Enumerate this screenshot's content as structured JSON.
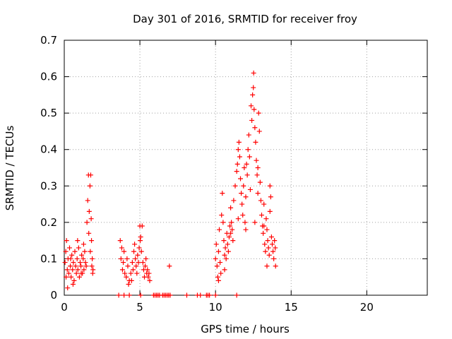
{
  "chart_data": {
    "type": "scatter",
    "title": "Day 301 of 2016, SRMTID for receiver froy",
    "xlabel": "GPS time / hours",
    "ylabel": "SRMTID / TECUs",
    "xlim": [
      0,
      24
    ],
    "ylim": [
      0,
      0.7
    ],
    "xticks": [
      0,
      5,
      10,
      15,
      20
    ],
    "yticks": [
      0,
      0.1,
      0.2,
      0.3,
      0.4,
      0.5,
      0.6,
      0.7
    ],
    "xtick_labels": [
      "0",
      "5",
      "10",
      "15",
      "20"
    ],
    "ytick_labels": [
      "0",
      "0.1",
      "0.2",
      "0.3",
      "0.4",
      "0.5",
      "0.6",
      "0.7"
    ],
    "grid": true,
    "marker": "+",
    "color": "#ff0000",
    "series": [
      {
        "points": [
          [
            0.05,
            0.09
          ],
          [
            0.1,
            0.12
          ],
          [
            0.12,
            0.05
          ],
          [
            0.15,
            0.15
          ],
          [
            0.2,
            0.07
          ],
          [
            0.25,
            0.1
          ],
          [
            0.3,
            0.06
          ],
          [
            0.35,
            0.13
          ],
          [
            0.4,
            0.08
          ],
          [
            0.45,
            0.05
          ],
          [
            0.5,
            0.11
          ],
          [
            0.55,
            0.07
          ],
          [
            0.6,
            0.09
          ],
          [
            0.65,
            0.04
          ],
          [
            0.7,
            0.12
          ],
          [
            0.75,
            0.08
          ],
          [
            0.8,
            0.06
          ],
          [
            0.85,
            0.1
          ],
          [
            0.9,
            0.07
          ],
          [
            0.95,
            0.13
          ],
          [
            1.0,
            0.05
          ],
          [
            1.05,
            0.09
          ],
          [
            1.1,
            0.08
          ],
          [
            1.15,
            0.11
          ],
          [
            1.2,
            0.06
          ],
          [
            1.25,
            0.1
          ],
          [
            1.3,
            0.07
          ],
          [
            1.35,
            0.12
          ],
          [
            1.4,
            0.09
          ],
          [
            1.45,
            0.08
          ],
          [
            1.5,
            0.2
          ],
          [
            1.55,
            0.26
          ],
          [
            1.6,
            0.33
          ],
          [
            1.62,
            0.17
          ],
          [
            1.65,
            0.23
          ],
          [
            1.7,
            0.3
          ],
          [
            1.72,
            0.12
          ],
          [
            1.75,
            0.33
          ],
          [
            1.78,
            0.21
          ],
          [
            1.8,
            0.15
          ],
          [
            1.82,
            0.08
          ],
          [
            1.85,
            0.1
          ],
          [
            1.88,
            0.06
          ],
          [
            1.9,
            0.07
          ],
          [
            0.22,
            0.02
          ],
          [
            0.58,
            0.03
          ],
          [
            0.88,
            0.15
          ],
          [
            1.28,
            0.14
          ],
          [
            0.42,
            0.1
          ],
          [
            1.12,
            0.06
          ],
          [
            3.7,
            0.15
          ],
          [
            3.75,
            0.1
          ],
          [
            3.8,
            0.13
          ],
          [
            3.85,
            0.07
          ],
          [
            3.9,
            0.09
          ],
          [
            4.0,
            0.06
          ],
          [
            4.1,
            0.05
          ],
          [
            4.2,
            0.08
          ],
          [
            4.3,
            0.04
          ],
          [
            4.4,
            0.06
          ],
          [
            4.5,
            0.09
          ],
          [
            4.55,
            0.07
          ],
          [
            4.6,
            0.12
          ],
          [
            4.65,
            0.14
          ],
          [
            4.7,
            0.1
          ],
          [
            4.75,
            0.08
          ],
          [
            4.8,
            0.06
          ],
          [
            4.85,
            0.11
          ],
          [
            4.9,
            0.09
          ],
          [
            4.95,
            0.13
          ],
          [
            5.0,
            0.19
          ],
          [
            5.02,
            0.15
          ],
          [
            5.05,
            0.16
          ],
          [
            5.1,
            0.12
          ],
          [
            5.15,
            0.19
          ],
          [
            5.2,
            0.09
          ],
          [
            5.25,
            0.07
          ],
          [
            5.3,
            0.05
          ],
          [
            5.35,
            0.08
          ],
          [
            5.4,
            0.1
          ],
          [
            5.45,
            0.06
          ],
          [
            5.5,
            0.07
          ],
          [
            5.55,
            0.05
          ],
          [
            5.6,
            0.06
          ],
          [
            5.65,
            0.04
          ],
          [
            4.25,
            0.03
          ],
          [
            4.45,
            0.04
          ],
          [
            4.15,
            0.1
          ],
          [
            3.95,
            0.12
          ],
          [
            6.95,
            0.08
          ],
          [
            10.0,
            0.1
          ],
          [
            10.05,
            0.14
          ],
          [
            10.1,
            0.08
          ],
          [
            10.15,
            0.05
          ],
          [
            10.2,
            0.12
          ],
          [
            10.25,
            0.18
          ],
          [
            10.3,
            0.09
          ],
          [
            10.35,
            0.06
          ],
          [
            10.4,
            0.22
          ],
          [
            10.45,
            0.28
          ],
          [
            10.5,
            0.2
          ],
          [
            10.55,
            0.15
          ],
          [
            10.6,
            0.11
          ],
          [
            10.65,
            0.13
          ],
          [
            10.7,
            0.1
          ],
          [
            10.75,
            0.17
          ],
          [
            10.8,
            0.14
          ],
          [
            10.85,
            0.12
          ],
          [
            10.9,
            0.16
          ],
          [
            10.95,
            0.19
          ],
          [
            11.0,
            0.24
          ],
          [
            11.05,
            0.2
          ],
          [
            11.1,
            0.18
          ],
          [
            11.15,
            0.15
          ],
          [
            11.2,
            0.26
          ],
          [
            11.3,
            0.3
          ],
          [
            11.4,
            0.34
          ],
          [
            11.45,
            0.36
          ],
          [
            11.5,
            0.4
          ],
          [
            11.55,
            0.42
          ],
          [
            11.6,
            0.38
          ],
          [
            11.65,
            0.32
          ],
          [
            11.7,
            0.28
          ],
          [
            11.75,
            0.25
          ],
          [
            11.8,
            0.22
          ],
          [
            11.85,
            0.3
          ],
          [
            11.9,
            0.35
          ],
          [
            11.95,
            0.2
          ],
          [
            12.0,
            0.18
          ],
          [
            12.05,
            0.36
          ],
          [
            12.1,
            0.33
          ],
          [
            12.15,
            0.4
          ],
          [
            12.2,
            0.44
          ],
          [
            12.25,
            0.38
          ],
          [
            12.3,
            0.29
          ],
          [
            12.35,
            0.52
          ],
          [
            12.4,
            0.48
          ],
          [
            12.45,
            0.55
          ],
          [
            12.5,
            0.57
          ],
          [
            12.52,
            0.61
          ],
          [
            12.55,
            0.51
          ],
          [
            12.6,
            0.46
          ],
          [
            12.65,
            0.42
          ],
          [
            12.7,
            0.37
          ],
          [
            12.75,
            0.33
          ],
          [
            12.8,
            0.28
          ],
          [
            12.85,
            0.5
          ],
          [
            12.9,
            0.45
          ],
          [
            12.95,
            0.31
          ],
          [
            13.0,
            0.26
          ],
          [
            13.05,
            0.22
          ],
          [
            13.1,
            0.19
          ],
          [
            13.15,
            0.17
          ],
          [
            13.2,
            0.25
          ],
          [
            13.25,
            0.14
          ],
          [
            13.3,
            0.12
          ],
          [
            13.35,
            0.21
          ],
          [
            13.4,
            0.18
          ],
          [
            13.45,
            0.15
          ],
          [
            13.5,
            0.13
          ],
          [
            13.55,
            0.11
          ],
          [
            13.6,
            0.3
          ],
          [
            13.65,
            0.27
          ],
          [
            13.7,
            0.16
          ],
          [
            13.75,
            0.14
          ],
          [
            13.8,
            0.12
          ],
          [
            13.85,
            0.1
          ],
          [
            13.9,
            0.15
          ],
          [
            13.95,
            0.13
          ],
          [
            13.97,
            0.08
          ],
          [
            13.4,
            0.08
          ],
          [
            13.2,
            0.19
          ],
          [
            12.8,
            0.35
          ],
          [
            12.0,
            0.27
          ],
          [
            11.5,
            0.21
          ],
          [
            11.0,
            0.17
          ],
          [
            10.6,
            0.07
          ],
          [
            10.2,
            0.04
          ],
          [
            13.6,
            0.23
          ],
          [
            12.6,
            0.2
          ],
          [
            3.6,
            0
          ],
          [
            3.95,
            0
          ],
          [
            4.3,
            0
          ],
          [
            5.05,
            0
          ],
          [
            5.9,
            0
          ],
          [
            6.0,
            0
          ],
          [
            6.1,
            0
          ],
          [
            6.2,
            0
          ],
          [
            6.3,
            0
          ],
          [
            6.5,
            0
          ],
          [
            6.6,
            0
          ],
          [
            6.7,
            0
          ],
          [
            6.8,
            0
          ],
          [
            6.9,
            0
          ],
          [
            7.0,
            0
          ],
          [
            8.1,
            0
          ],
          [
            8.8,
            0
          ],
          [
            9.0,
            0
          ],
          [
            9.4,
            0
          ],
          [
            9.5,
            0
          ],
          [
            9.6,
            0
          ],
          [
            10.0,
            0
          ],
          [
            11.4,
            0
          ]
        ]
      }
    ]
  }
}
